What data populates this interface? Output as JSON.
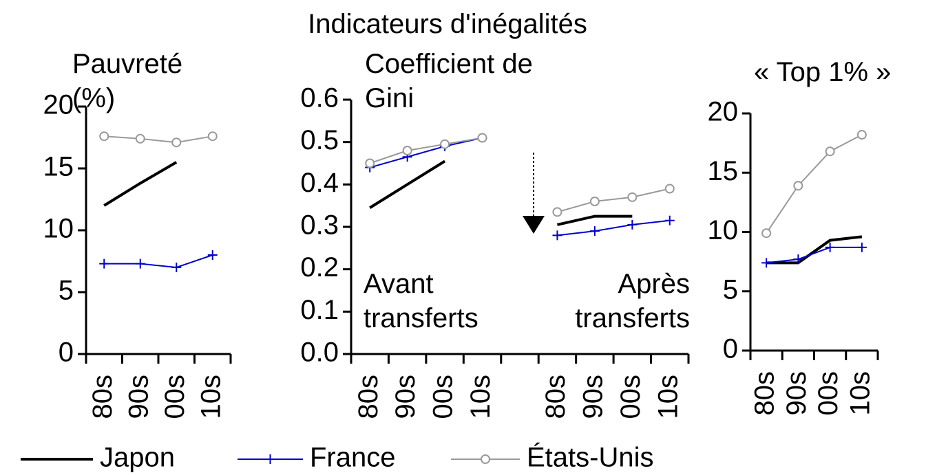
{
  "title": "Indicateurs d'inégalités",
  "chart_data": [
    {
      "type": "line",
      "title": "Pauvreté (%)",
      "categories": [
        "80s",
        "90s",
        "00s",
        "10s"
      ],
      "ylim": [
        0,
        20
      ],
      "yticks": [
        0,
        5,
        10,
        15,
        20
      ],
      "series": [
        {
          "name": "Japon",
          "color": "#000000",
          "marker": "none",
          "values": [
            12,
            13.8,
            15.5,
            null
          ]
        },
        {
          "name": "France",
          "color": "#0000cc",
          "marker": "plus",
          "values": [
            7.3,
            7.3,
            7.0,
            8.0
          ]
        },
        {
          "name": "États-Unis",
          "color": "#999999",
          "marker": "circle",
          "values": [
            17.6,
            17.4,
            17.1,
            17.6
          ]
        }
      ]
    },
    {
      "type": "line",
      "title": "Coefficient de Gini",
      "categories": [
        "80s",
        "90s",
        "00s",
        "10s",
        null,
        "80s",
        "90s",
        "00s",
        "10s"
      ],
      "ylim": [
        0,
        0.6
      ],
      "yticks": [
        {
          "value": 0,
          "label": "0.0"
        },
        0.1,
        0.2,
        0.3,
        0.4,
        0.5,
        0.6
      ],
      "annotations": [
        "Avant transferts",
        "Après transferts"
      ],
      "series": [
        {
          "name": "Japon",
          "color": "#000000",
          "marker": "none",
          "values": [
            0.345,
            0.4,
            0.455,
            null,
            null,
            0.305,
            0.325,
            0.325,
            null
          ]
        },
        {
          "name": "France",
          "color": "#0000cc",
          "marker": "plus",
          "values": [
            0.44,
            0.465,
            0.49,
            0.51,
            null,
            0.28,
            0.29,
            0.305,
            0.315
          ]
        },
        {
          "name": "États-Unis",
          "color": "#999999",
          "marker": "circle",
          "values": [
            0.45,
            0.48,
            0.495,
            0.51,
            null,
            0.335,
            0.36,
            0.37,
            0.39
          ]
        }
      ]
    },
    {
      "type": "line",
      "title": "« Top 1% »",
      "categories": [
        "80s",
        "90s",
        "00s",
        "10s"
      ],
      "ylim": [
        0,
        20
      ],
      "yticks": [
        0,
        5,
        10,
        15,
        20
      ],
      "series": [
        {
          "name": "Japon",
          "color": "#000000",
          "marker": "none",
          "values": [
            7.4,
            7.4,
            9.3,
            9.6
          ]
        },
        {
          "name": "France",
          "color": "#0000cc",
          "marker": "plus",
          "values": [
            7.4,
            7.7,
            8.7,
            8.7
          ]
        },
        {
          "name": "États-Unis",
          "color": "#999999",
          "marker": "circle",
          "values": [
            9.9,
            13.9,
            16.8,
            18.2
          ]
        }
      ]
    }
  ]
}
